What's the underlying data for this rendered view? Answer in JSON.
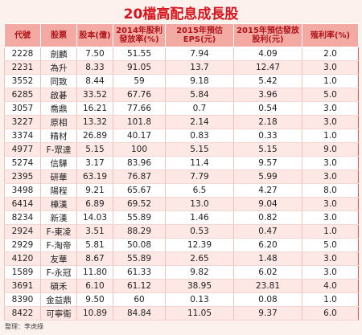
{
  "title": "20檔高配息成長股",
  "table": {
    "header": [
      "代號",
      "股票",
      "股本(億)",
      "2014年股利發放率(%)",
      "2015年預估EPS(元)",
      "2015年預估發放股利(元)",
      "殖利率(%)"
    ],
    "rows": [
      [
        "2228",
        "劍麟",
        "7.50",
        "51.55",
        "7.94",
        "4.09",
        "2.0"
      ],
      [
        "2231",
        "為升",
        "8.33",
        "91.05",
        "13.7",
        "12.47",
        "3.0"
      ],
      [
        "3552",
        "同致",
        "8.44",
        "59",
        "9.18",
        "5.42",
        "1.0"
      ],
      [
        "6285",
        "啟碁",
        "33.52",
        "67.76",
        "5.84",
        "3.96",
        "5.0"
      ],
      [
        "3057",
        "喬鼎",
        "16.21",
        "77.66",
        "0.7",
        "0.54",
        "3.0"
      ],
      [
        "3227",
        "原相",
        "13.32",
        "101.8",
        "2.14",
        "2.18",
        "3.0"
      ],
      [
        "3374",
        "精材",
        "26.89",
        "40.17",
        "0.83",
        "0.33",
        "1.0"
      ],
      [
        "4977",
        "F-眾達",
        "5.15",
        "100",
        "5.15",
        "5.15",
        "9.0"
      ],
      [
        "5274",
        "信驊",
        "3.17",
        "83.96",
        "11.4",
        "9.57",
        "3.0"
      ],
      [
        "2395",
        "研華",
        "63.19",
        "76.87",
        "7.79",
        "5.99",
        "3.0"
      ],
      [
        "3498",
        "陽程",
        "9.21",
        "65.67",
        "6.5",
        "4.27",
        "8.0"
      ],
      [
        "6414",
        "樺漢",
        "6.89",
        "69.52",
        "13.0",
        "9.04",
        "3.0"
      ],
      [
        "8234",
        "新漢",
        "14.03",
        "55.89",
        "1.46",
        "0.82",
        "3.0"
      ],
      [
        "2924",
        "F-東凌",
        "3.51",
        "88.29",
        "0.53",
        "0.47",
        "1.0"
      ],
      [
        "2929",
        "F-淘帝",
        "5.81",
        "50.08",
        "12.39",
        "6.20",
        "5.0"
      ],
      [
        "4120",
        "友華",
        "8.67",
        "55.89",
        "2.65",
        "1.48",
        "3.0"
      ],
      [
        "1589",
        "F-永冠",
        "11.80",
        "61.33",
        "9.82",
        "6.02",
        "3.0"
      ],
      [
        "3691",
        "碩禾",
        "6.10",
        "61.12",
        "38.95",
        "23.81",
        "4.0"
      ],
      [
        "8390",
        "金益鼎",
        "9.50",
        "60",
        "0.13",
        "0.08",
        "1.0"
      ],
      [
        "8422",
        "可寧衛",
        "10.89",
        "84.84",
        "11.05",
        "9.37",
        "6.0"
      ]
    ]
  },
  "source": "整理：李虎綠"
}
